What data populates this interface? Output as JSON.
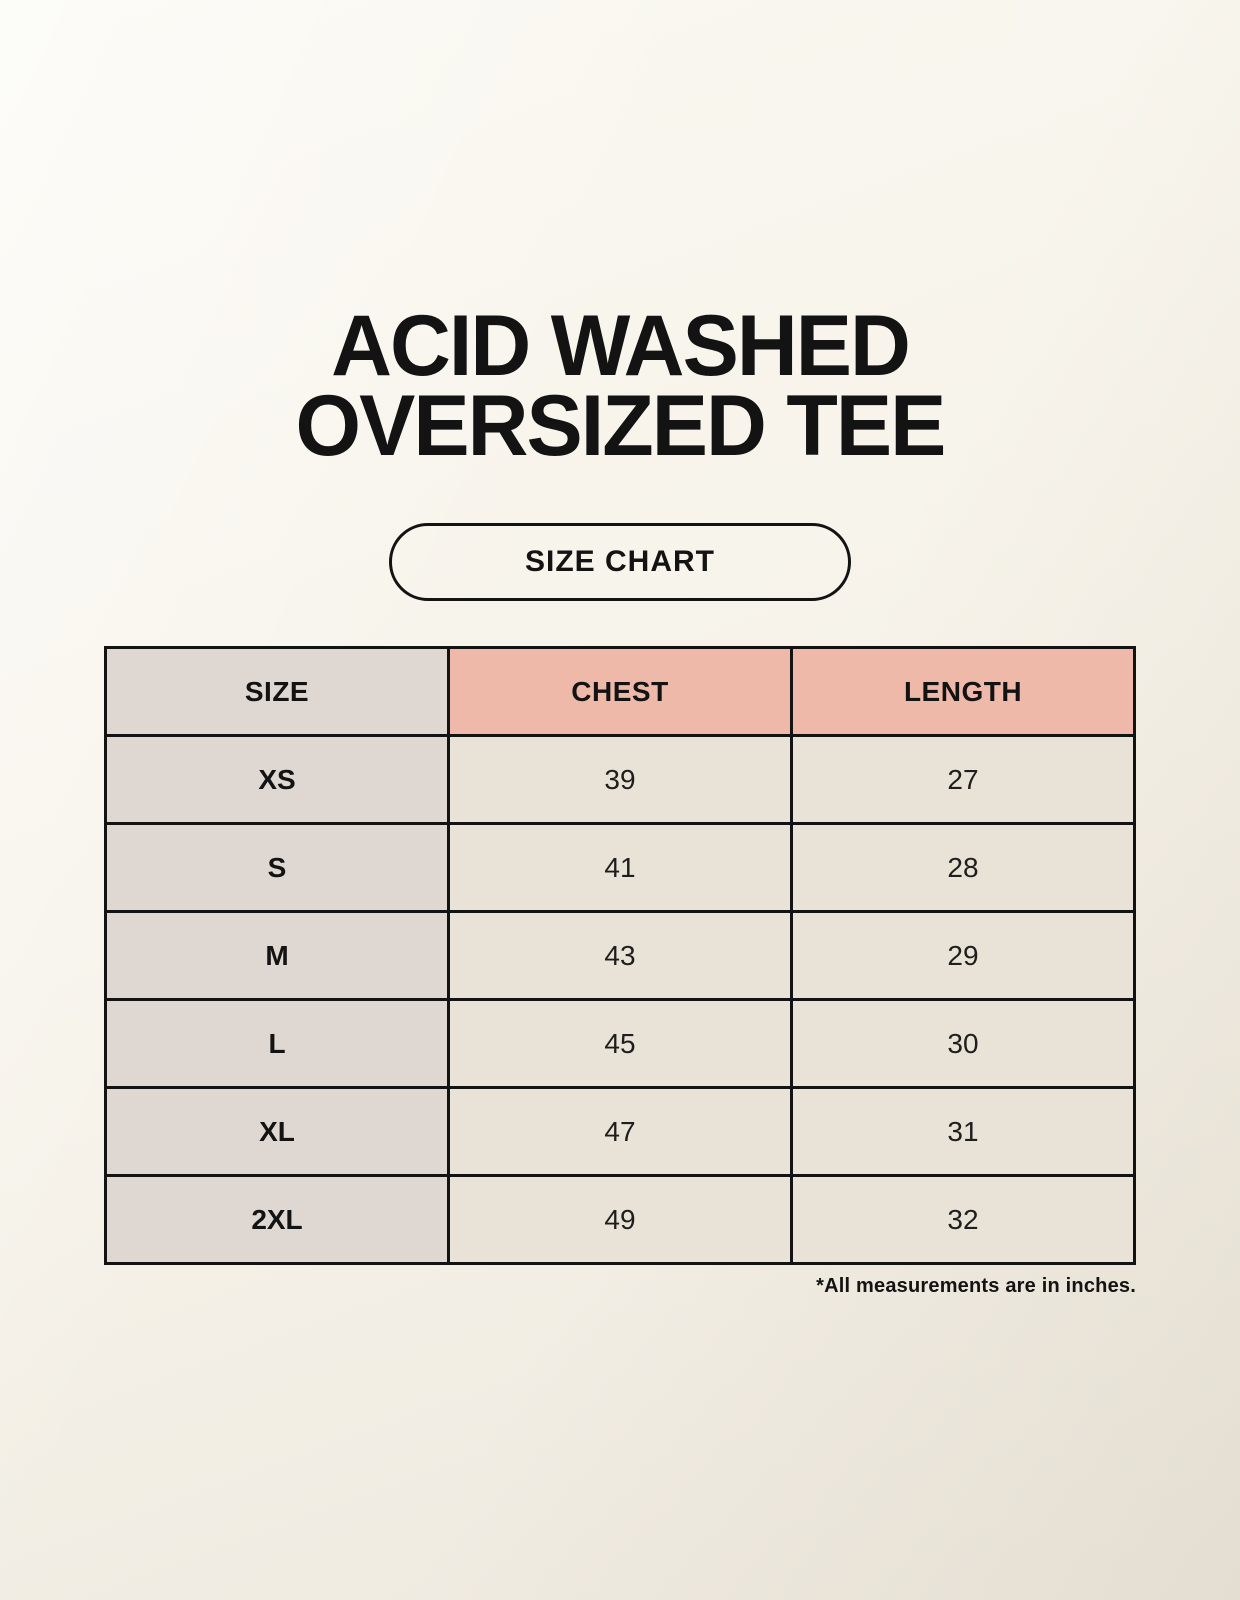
{
  "page": {
    "title_line1": "ACID WASHED",
    "title_line2": "OVERSIZED TEE",
    "badge_label": "SIZE CHART",
    "footnote": "*All measurements are in inches."
  },
  "colors": {
    "background": "#f6f2e9",
    "header_accent": "#efb9aa",
    "size_column": "#ded7d2",
    "data_cell": "#e9e3d7",
    "border": "#131313",
    "text": "#131313"
  },
  "chart_data": {
    "type": "table",
    "title": "ACID WASHED OVERSIZED TEE — SIZE CHART",
    "columns": [
      "SIZE",
      "CHEST",
      "LENGTH"
    ],
    "units": "inches",
    "rows": [
      {
        "size": "XS",
        "chest": 39,
        "length": 27
      },
      {
        "size": "S",
        "chest": 41,
        "length": 28
      },
      {
        "size": "M",
        "chest": 43,
        "length": 29
      },
      {
        "size": "L",
        "chest": 45,
        "length": 30
      },
      {
        "size": "XL",
        "chest": 47,
        "length": 31
      },
      {
        "size": "2XL",
        "chest": 49,
        "length": 32
      }
    ]
  }
}
